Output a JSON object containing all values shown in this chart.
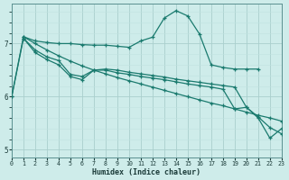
{
  "xlabel": "Humidex (Indice chaleur)",
  "bg_color": "#ceecea",
  "grid_color_major": "#aacfcd",
  "grid_color_minor": "#c0e3e1",
  "line_color": "#1a7a6e",
  "xlim": [
    0,
    23
  ],
  "ylim": [
    4.85,
    7.75
  ],
  "yticks": [
    5,
    6,
    7
  ],
  "xticks": [
    0,
    1,
    2,
    3,
    4,
    5,
    6,
    7,
    8,
    9,
    10,
    11,
    12,
    13,
    14,
    15,
    16,
    17,
    18,
    19,
    20,
    21,
    22,
    23
  ],
  "series": [
    {
      "x": [
        1,
        2,
        3,
        4,
        5,
        6,
        7,
        8,
        9,
        10,
        11,
        12,
        13,
        14,
        15,
        16,
        17,
        18,
        19,
        20,
        21
      ],
      "y": [
        7.13,
        7.05,
        7.02,
        7.0,
        7.0,
        6.98,
        6.97,
        6.97,
        6.95,
        6.93,
        7.05,
        7.12,
        7.48,
        7.62,
        7.52,
        7.18,
        6.6,
        6.55,
        6.52,
        6.52,
        6.52
      ]
    },
    {
      "x": [
        0,
        1,
        2,
        3,
        4,
        5,
        6,
        7,
        8,
        9,
        10,
        11,
        12,
        13,
        14,
        15,
        16,
        17,
        18,
        19,
        20,
        21,
        22,
        23
      ],
      "y": [
        6.0,
        7.13,
        7.0,
        6.88,
        6.77,
        6.67,
        6.58,
        6.5,
        6.43,
        6.36,
        6.3,
        6.24,
        6.18,
        6.12,
        6.06,
        6.0,
        5.94,
        5.88,
        5.83,
        5.77,
        5.71,
        5.65,
        5.6,
        5.54
      ]
    },
    {
      "x": [
        1,
        2,
        3,
        4,
        5,
        6,
        7,
        8,
        9,
        10,
        11,
        12,
        13,
        14,
        15,
        16,
        17,
        18,
        19,
        20,
        21,
        22,
        23
      ],
      "y": [
        7.1,
        6.88,
        6.75,
        6.68,
        6.42,
        6.38,
        6.5,
        6.52,
        6.5,
        6.46,
        6.43,
        6.4,
        6.37,
        6.33,
        6.3,
        6.27,
        6.24,
        6.21,
        6.18,
        5.8,
        5.62,
        5.42,
        5.3
      ]
    },
    {
      "x": [
        0,
        1,
        2,
        3,
        4,
        5,
        6,
        7,
        8,
        9,
        10,
        11,
        12,
        13,
        14,
        15,
        16,
        17,
        18,
        19,
        20,
        21,
        22,
        23
      ],
      "y": [
        6.0,
        7.1,
        6.83,
        6.7,
        6.6,
        6.38,
        6.32,
        6.5,
        6.5,
        6.45,
        6.42,
        6.38,
        6.35,
        6.32,
        6.28,
        6.24,
        6.21,
        6.18,
        6.14,
        5.77,
        5.8,
        5.6,
        5.22,
        5.4
      ]
    }
  ]
}
